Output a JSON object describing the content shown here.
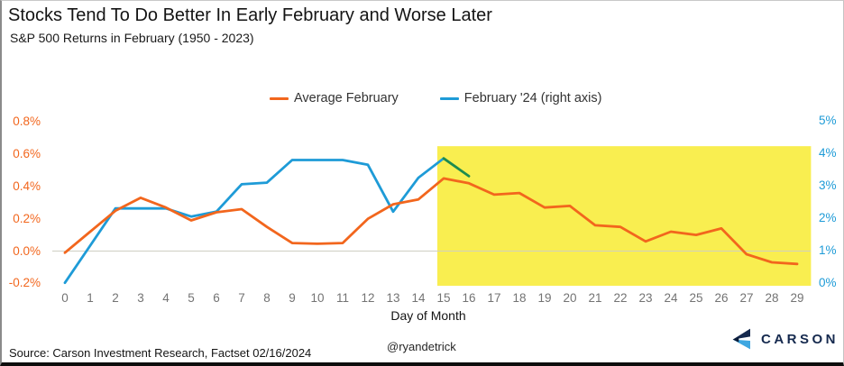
{
  "header": {
    "title": "Stocks Tend To Do Better In Early February and Worse Later",
    "subtitle": "S&P 500 Returns in February (1950 - 2023)"
  },
  "legend": [
    {
      "label": "Average February",
      "color": "#f2661d"
    },
    {
      "label": "February '24 (right axis)",
      "color": "#1e9bd7"
    }
  ],
  "chart_data": {
    "type": "line",
    "title": "Stocks Tend To Do Better In Early February and Worse Later",
    "subtitle": "S&P 500 Returns in February (1950 - 2023)",
    "xlabel": "Day of Month",
    "x": [
      0,
      1,
      2,
      3,
      4,
      5,
      6,
      7,
      8,
      9,
      10,
      11,
      12,
      13,
      14,
      15,
      16,
      17,
      18,
      19,
      20,
      21,
      22,
      23,
      24,
      25,
      26,
      27,
      28,
      29
    ],
    "series": [
      {
        "name": "February '24 (right axis)",
        "axis": "right",
        "color": "#1e9bd7",
        "highlight_segment_color": "#1e8b4f",
        "values": [
          0.0,
          1.15,
          2.3,
          2.3,
          2.3,
          2.05,
          2.2,
          3.05,
          3.1,
          3.8,
          3.8,
          3.8,
          3.65,
          2.2,
          3.25,
          3.85,
          3.3
        ]
      },
      {
        "name": "Average February",
        "axis": "left",
        "color": "#f2661d",
        "values": [
          -0.01,
          0.12,
          0.25,
          0.33,
          0.27,
          0.19,
          0.24,
          0.26,
          0.15,
          0.05,
          0.045,
          0.05,
          0.2,
          0.29,
          0.32,
          0.45,
          0.42,
          0.35,
          0.36,
          0.27,
          0.28,
          0.16,
          0.15,
          0.06,
          0.12,
          0.1,
          0.14,
          -0.02,
          -0.07,
          -0.08
        ]
      }
    ],
    "left_axis": {
      "color": "#f2661d",
      "ticks": [
        "0.8%",
        "0.6%",
        "0.4%",
        "0.2%",
        "0.0%",
        "-0.2%"
      ],
      "tick_values": [
        0.8,
        0.6,
        0.4,
        0.2,
        0.0,
        -0.2
      ],
      "range": [
        -0.2,
        0.8
      ]
    },
    "right_axis": {
      "color": "#1e9bd7",
      "ticks": [
        "5%",
        "4%",
        "3%",
        "2%",
        "1%",
        "0%"
      ],
      "tick_values": [
        5,
        4,
        3,
        2,
        1,
        0
      ],
      "range": [
        0,
        5
      ]
    },
    "highlight": {
      "day_start": 14.75,
      "day_end": 29.55,
      "value_top": 0.65,
      "value_bottom": -0.215,
      "color": "#f9ee50"
    },
    "gridline_value": 0.0,
    "legend_position": "top-center",
    "grid": "zero-line-only"
  },
  "footer": {
    "source": "Source: Carson Investment Research, Factset 02/16/2024",
    "handle": "@ryandetrick",
    "brand": "CARSON"
  }
}
